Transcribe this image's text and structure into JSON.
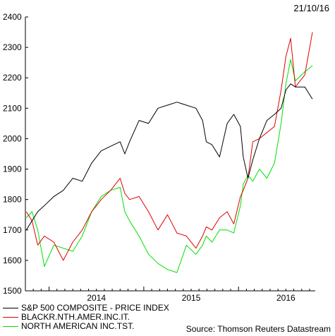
{
  "date_label": "21/10/16",
  "source": "Source: Thomson Reuters Datastream",
  "chart_data": {
    "type": "line",
    "title": "",
    "xlabel": "",
    "ylabel": "",
    "ylim": [
      1500,
      2400
    ],
    "y_ticks": [
      1500,
      1600,
      1700,
      1800,
      1900,
      2000,
      2100,
      2200,
      2300,
      2400
    ],
    "xlim": [
      2013.75,
      2016.81
    ],
    "x_ticks": [
      {
        "value": 2014.0,
        "label": "2014"
      },
      {
        "value": 2015.0,
        "label": "2015"
      },
      {
        "value": 2016.0,
        "label": "2016"
      }
    ],
    "grid": false,
    "legend_position": "bottom-left",
    "x": [
      2013.76,
      2013.82,
      2013.88,
      2013.95,
      2014.05,
      2014.15,
      2014.25,
      2014.35,
      2014.45,
      2014.55,
      2014.65,
      2014.75,
      2014.8,
      2014.85,
      2014.95,
      2015.05,
      2015.15,
      2015.25,
      2015.35,
      2015.45,
      2015.55,
      2015.62,
      2015.66,
      2015.72,
      2015.8,
      2015.88,
      2015.95,
      2016.02,
      2016.05,
      2016.1,
      2016.15,
      2016.22,
      2016.3,
      2016.38,
      2016.45,
      2016.5,
      2016.55,
      2016.6,
      2016.7,
      2016.78
    ],
    "series": [
      {
        "name": "S&P 500 COMPOSITE - PRICE INDEX",
        "color": "#000000",
        "values": [
          1700,
          1730,
          1760,
          1780,
          1810,
          1830,
          1870,
          1860,
          1920,
          1960,
          1975,
          1990,
          1950,
          1990,
          2060,
          2050,
          2100,
          2110,
          2120,
          2110,
          2100,
          2060,
          1990,
          1980,
          1940,
          2050,
          2080,
          2040,
          1940,
          1870,
          1930,
          2000,
          2060,
          2080,
          2100,
          2160,
          2180,
          2170,
          2170,
          2130
        ]
      },
      {
        "name": "BLACKR.NTH.AMER.INC.IT.",
        "color": "#e00000",
        "values": [
          1760,
          1730,
          1650,
          1680,
          1660,
          1600,
          1660,
          1700,
          1760,
          1800,
          1830,
          1870,
          1820,
          1800,
          1810,
          1760,
          1700,
          1750,
          1690,
          1680,
          1640,
          1680,
          1710,
          1700,
          1740,
          1760,
          1720,
          1810,
          1830,
          1870,
          1990,
          2000,
          2020,
          2040,
          2160,
          2270,
          2330,
          2170,
          2210,
          2350
        ]
      },
      {
        "name": "NORTH AMERICAN INC.TST.",
        "color": "#00e000",
        "values": [
          1740,
          1760,
          1700,
          1580,
          1650,
          1640,
          1630,
          1680,
          1760,
          1810,
          1830,
          1840,
          1760,
          1730,
          1680,
          1620,
          1590,
          1570,
          1560,
          1650,
          1620,
          1650,
          1680,
          1660,
          1700,
          1700,
          1690,
          1780,
          1850,
          1880,
          1860,
          1900,
          1870,
          1920,
          2050,
          2180,
          2260,
          2190,
          2220,
          2240
        ]
      }
    ]
  }
}
